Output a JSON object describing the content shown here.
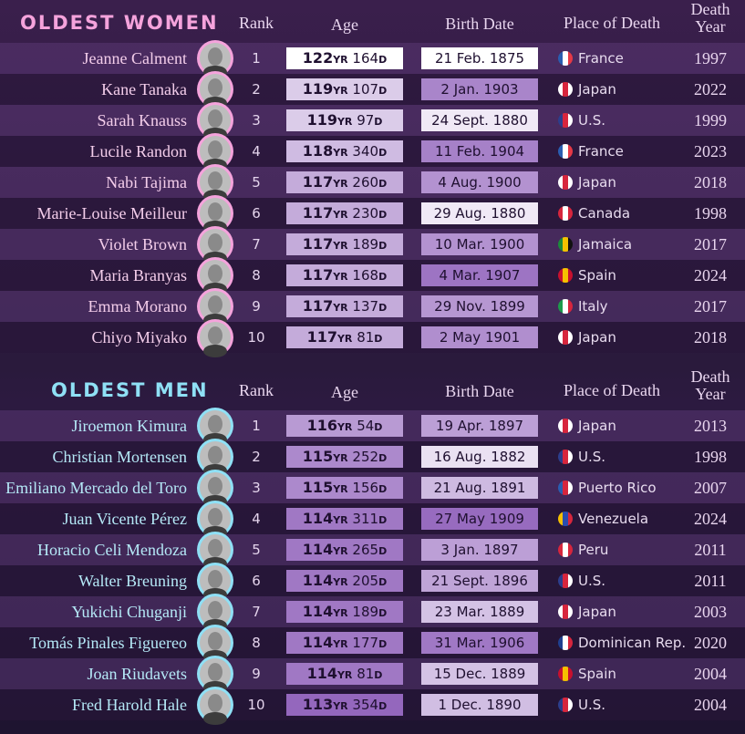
{
  "sections": [
    {
      "title": "OLDEST WOMEN",
      "theme": "#f5a3dc",
      "name_color": "#f3cdea",
      "headers": {
        "rank": "Rank",
        "age": "Age",
        "birth": "Birth Date",
        "place": "Place of Death",
        "death": "Death Year"
      },
      "age_units": [
        "YR",
        "D"
      ],
      "rows": [
        {
          "name": "Jeanne Calment",
          "rank": 1,
          "years": 122,
          "days": 164,
          "birth": "21 Feb. 1875",
          "place": "France",
          "flag": [
            "#2a5db0",
            "#ffffff",
            "#e63946"
          ],
          "death": 1997
        },
        {
          "name": "Kane Tanaka",
          "rank": 2,
          "years": 119,
          "days": 107,
          "birth": "2 Jan. 1903",
          "place": "Japan",
          "flag": [
            "#ffffff",
            "#d7263d",
            "#ffffff"
          ],
          "death": 2022
        },
        {
          "name": "Sarah Knauss",
          "rank": 3,
          "years": 119,
          "days": 97,
          "birth": "24 Sept. 1880",
          "place": "U.S.",
          "flag": [
            "#2c3e8c",
            "#d7263d",
            "#ffffff"
          ],
          "death": 1999
        },
        {
          "name": "Lucile Randon",
          "rank": 4,
          "years": 118,
          "days": 340,
          "birth": "11 Feb. 1904",
          "place": "France",
          "flag": [
            "#2a5db0",
            "#ffffff",
            "#e63946"
          ],
          "death": 2023
        },
        {
          "name": "Nabi Tajima",
          "rank": 5,
          "years": 117,
          "days": 260,
          "birth": "4 Aug. 1900",
          "place": "Japan",
          "flag": [
            "#ffffff",
            "#d7263d",
            "#ffffff"
          ],
          "death": 2018
        },
        {
          "name": "Marie-Louise Meilleur",
          "rank": 6,
          "years": 117,
          "days": 230,
          "birth": "29 Aug. 1880",
          "place": "Canada",
          "flag": [
            "#d7263d",
            "#ffffff",
            "#d7263d"
          ],
          "death": 1998
        },
        {
          "name": "Violet Brown",
          "rank": 7,
          "years": 117,
          "days": 189,
          "birth": "10 Mar. 1900",
          "place": "Jamaica",
          "flag": [
            "#1b8a3a",
            "#f2c200",
            "#111111"
          ],
          "death": 2017
        },
        {
          "name": "Maria Branyas",
          "rank": 8,
          "years": 117,
          "days": 168,
          "birth": "4 Mar. 1907",
          "place": "Spain",
          "flag": [
            "#c8102e",
            "#f6c000",
            "#c8102e"
          ],
          "death": 2024
        },
        {
          "name": "Emma Morano",
          "rank": 9,
          "years": 117,
          "days": 137,
          "birth": "29 Nov. 1899",
          "place": "Italy",
          "flag": [
            "#1e9a4b",
            "#ffffff",
            "#d7263d"
          ],
          "death": 2017
        },
        {
          "name": "Chiyo Miyako",
          "rank": 10,
          "years": 117,
          "days": 81,
          "birth": "2 May 1901",
          "place": "Japan",
          "flag": [
            "#ffffff",
            "#d7263d",
            "#ffffff"
          ],
          "death": 2018
        }
      ]
    },
    {
      "title": "OLDEST MEN",
      "theme": "#8fe0f5",
      "name_color": "#b5e9f7",
      "headers": {
        "rank": "Rank",
        "age": "Age",
        "birth": "Birth Date",
        "place": "Place of Death",
        "death": "Death Year"
      },
      "age_units": [
        "YR",
        "D"
      ],
      "rows": [
        {
          "name": "Jiroemon Kimura",
          "rank": 1,
          "years": 116,
          "days": 54,
          "birth": "19 Apr. 1897",
          "place": "Japan",
          "flag": [
            "#ffffff",
            "#d7263d",
            "#ffffff"
          ],
          "death": 2013
        },
        {
          "name": "Christian Mortensen",
          "rank": 2,
          "years": 115,
          "days": 252,
          "birth": "16 Aug. 1882",
          "place": "U.S.",
          "flag": [
            "#2c3e8c",
            "#d7263d",
            "#ffffff"
          ],
          "death": 1998
        },
        {
          "name": "Emiliano Mercado del Toro",
          "rank": 3,
          "years": 115,
          "days": 156,
          "birth": "21 Aug. 1891",
          "place": "Puerto Rico",
          "flag": [
            "#2a5db0",
            "#d7263d",
            "#ffffff"
          ],
          "death": 2007
        },
        {
          "name": "Juan Vicente Pérez",
          "rank": 4,
          "years": 114,
          "days": 311,
          "birth": "27 May 1909",
          "place": "Venezuela",
          "flag": [
            "#f6c000",
            "#2a4db0",
            "#d7263d"
          ],
          "death": 2024
        },
        {
          "name": "Horacio Celi Mendoza",
          "rank": 5,
          "years": 114,
          "days": 265,
          "birth": "3 Jan. 1897",
          "place": "Peru",
          "flag": [
            "#d7263d",
            "#ffffff",
            "#d7263d"
          ],
          "death": 2011
        },
        {
          "name": "Walter Breuning",
          "rank": 6,
          "years": 114,
          "days": 205,
          "birth": "21 Sept. 1896",
          "place": "U.S.",
          "flag": [
            "#2c3e8c",
            "#d7263d",
            "#ffffff"
          ],
          "death": 2011
        },
        {
          "name": "Yukichi Chuganji",
          "rank": 7,
          "years": 114,
          "days": 189,
          "birth": "23 Mar. 1889",
          "place": "Japan",
          "flag": [
            "#ffffff",
            "#d7263d",
            "#ffffff"
          ],
          "death": 2003
        },
        {
          "name": "Tomás Pinales Figuereo",
          "rank": 8,
          "years": 114,
          "days": 177,
          "birth": "31 Mar. 1906",
          "place": "Dominican Rep.",
          "flag": [
            "#1f3f8f",
            "#ffffff",
            "#d7263d"
          ],
          "death": 2020
        },
        {
          "name": "Joan Riudavets",
          "rank": 9,
          "years": 114,
          "days": 81,
          "birth": "15 Dec. 1889",
          "place": "Spain",
          "flag": [
            "#c8102e",
            "#f6c000",
            "#c8102e"
          ],
          "death": 2004
        },
        {
          "name": "Fred Harold Hale",
          "rank": 10,
          "years": 113,
          "days": 354,
          "birth": "1 Dec. 1890",
          "place": "U.S.",
          "flag": [
            "#2c3e8c",
            "#d7263d",
            "#ffffff"
          ],
          "death": 2004
        }
      ]
    }
  ]
}
